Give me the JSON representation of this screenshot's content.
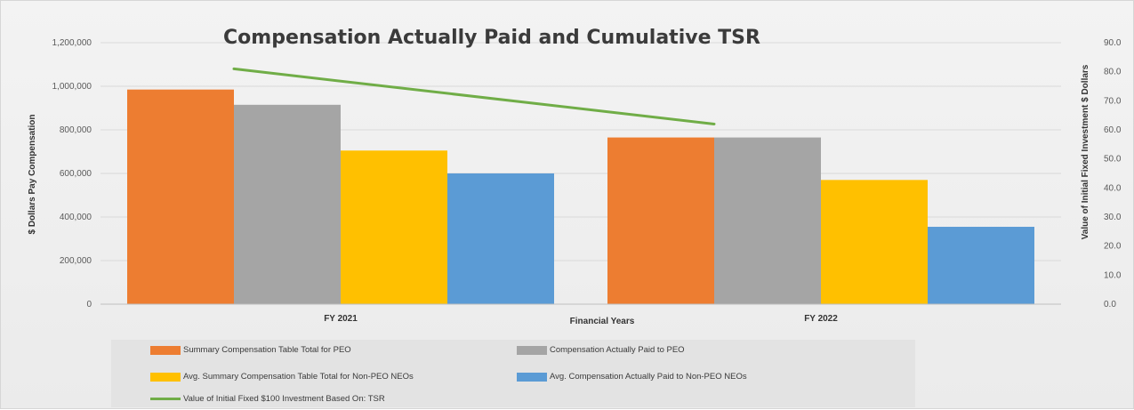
{
  "chart_data": {
    "type": "bar",
    "title": "Compensation Actually Paid and Cumulative TSR",
    "xlabel": "Financial Years",
    "ylabel": "$ Dollars Pay Compensation",
    "y2label": "Value of Initial Fixed Investment $ Dollars",
    "categories": [
      "FY 2021",
      "FY 2022"
    ],
    "ylim": [
      0,
      1200000
    ],
    "y2lim": [
      0,
      90
    ],
    "yticks": [
      "0",
      "200,000",
      "400,000",
      "600,000",
      "800,000",
      "1,000,000",
      "1,200,000"
    ],
    "y2ticks": [
      "0.0",
      "10.0",
      "20.0",
      "30.0",
      "40.0",
      "50.0",
      "60.0",
      "70.0",
      "80.0",
      "90.0"
    ],
    "grid": true,
    "legend_position": "bottom",
    "series": [
      {
        "name": "Summary Compensation Table Total for PEO",
        "values": [
          985000,
          765000
        ],
        "color": "#ED7D31"
      },
      {
        "name": "Compensation Actually Paid to PEO",
        "values": [
          915000,
          765000
        ],
        "color": "#A5A5A5"
      },
      {
        "name": "Avg. Summary Compensation Table Total for Non-PEO NEOs",
        "values": [
          705000,
          570000
        ],
        "color": "#FFC000"
      },
      {
        "name": "Avg. Compensation Actually Paid to Non-PEO NEOs",
        "values": [
          600000,
          355000
        ],
        "color": "#5B9BD5"
      }
    ],
    "line_series": {
      "name": "Value of Initial Fixed $100 Investment Based On: TSR",
      "values": [
        81.0,
        62.0
      ],
      "color": "#70AD47",
      "axis": "secondary"
    }
  }
}
